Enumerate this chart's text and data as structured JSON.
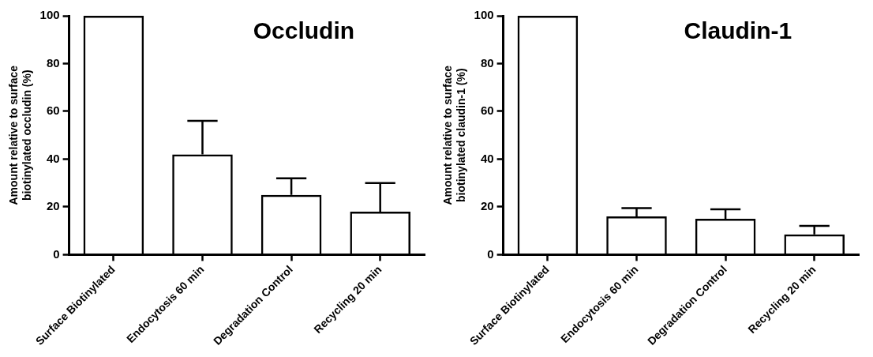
{
  "chart_data": [
    {
      "type": "bar",
      "title": "Occludin",
      "ylabel": "Amount relative to surface biotinylated occludin (%)",
      "categories": [
        "Surface Biotinylated",
        "Endocytosis 60 min",
        "Degradation Control",
        "Recycling 20 min"
      ],
      "values": [
        100,
        42,
        25,
        18
      ],
      "errors": [
        null,
        [
          42,
          56
        ],
        [
          25,
          32
        ],
        [
          18,
          30
        ]
      ],
      "color": "#000000",
      "ylim": [
        0,
        100
      ],
      "yticks": [
        0,
        20,
        40,
        60,
        80,
        100
      ],
      "grid": false,
      "legend": false
    },
    {
      "type": "bar",
      "title": "Claudin-1",
      "ylabel": "Amount relative to surface biotinylated claudin-1 (%)",
      "categories": [
        "Surface Biotinylated",
        "Endocytosis 60 min",
        "Degradation Control",
        "Recycling 20 min"
      ],
      "values": [
        100,
        16,
        15,
        8.5
      ],
      "errors": [
        null,
        [
          16,
          19.5
        ],
        [
          15,
          19
        ],
        [
          8.5,
          12
        ]
      ],
      "color": "#000000",
      "ylim": [
        0,
        100
      ],
      "yticks": [
        0,
        20,
        40,
        60,
        80,
        100
      ],
      "grid": false,
      "legend": false
    }
  ]
}
